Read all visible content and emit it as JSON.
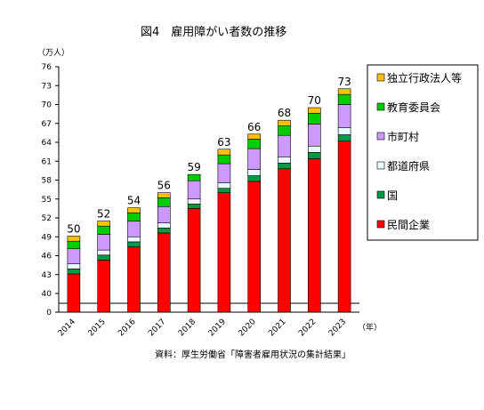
{
  "chart_data": {
    "type": "bar",
    "stacked": true,
    "title": "図4　雇用障がい者数の推移",
    "ylabel": "（万人）",
    "xlabel": "（年）",
    "source": "資料：厚生労働省「障害者雇用状況の集計結果」",
    "categories": [
      "2014",
      "2015",
      "2016",
      "2017",
      "2018",
      "2019",
      "2020",
      "2021",
      "2022",
      "2023"
    ],
    "yticks": [
      "0",
      "40",
      "43",
      "46",
      "49",
      "52",
      "55",
      "58",
      "61",
      "64",
      "67",
      "70",
      "73",
      "76"
    ],
    "axis_break": true,
    "ylim": [
      40,
      76
    ],
    "totals": [
      "50",
      "52",
      "54",
      "56",
      "59",
      "63",
      "66",
      "68",
      "70",
      "73"
    ],
    "series": [
      {
        "name": "民間企業",
        "color": "#FF0000",
        "values": [
          43.1,
          45.3,
          47.4,
          49.6,
          53.5,
          56.0,
          57.8,
          59.8,
          61.4,
          64.2
        ]
      },
      {
        "name": "国",
        "color": "#009944",
        "values": [
          0.8,
          0.8,
          0.8,
          0.8,
          0.7,
          0.7,
          0.9,
          0.9,
          1.0,
          1.0
        ]
      },
      {
        "name": "都道府県",
        "color": "#E8FAFF",
        "values": [
          0.8,
          0.8,
          0.8,
          0.8,
          0.8,
          0.9,
          1.0,
          1.0,
          1.0,
          1.1
        ]
      },
      {
        "name": "市町村",
        "color": "#CC99FF",
        "values": [
          2.4,
          2.5,
          2.5,
          2.6,
          2.9,
          3.0,
          3.3,
          3.4,
          3.5,
          3.7
        ]
      },
      {
        "name": "教育委員会",
        "color": "#00CC00",
        "values": [
          1.2,
          1.3,
          1.3,
          1.4,
          1.0,
          1.4,
          1.5,
          1.5,
          1.7,
          1.6
        ]
      },
      {
        "name": "独立行政法人等",
        "color": "#FFC000",
        "values": [
          0.8,
          0.8,
          0.8,
          0.8,
          0.0,
          0.9,
          0.8,
          0.9,
          0.9,
          0.9
        ]
      }
    ],
    "legend": [
      "独立行政法人等",
      "教育委員会",
      "市町村",
      "都道府県",
      "国",
      "民間企業"
    ],
    "grid": false
  }
}
